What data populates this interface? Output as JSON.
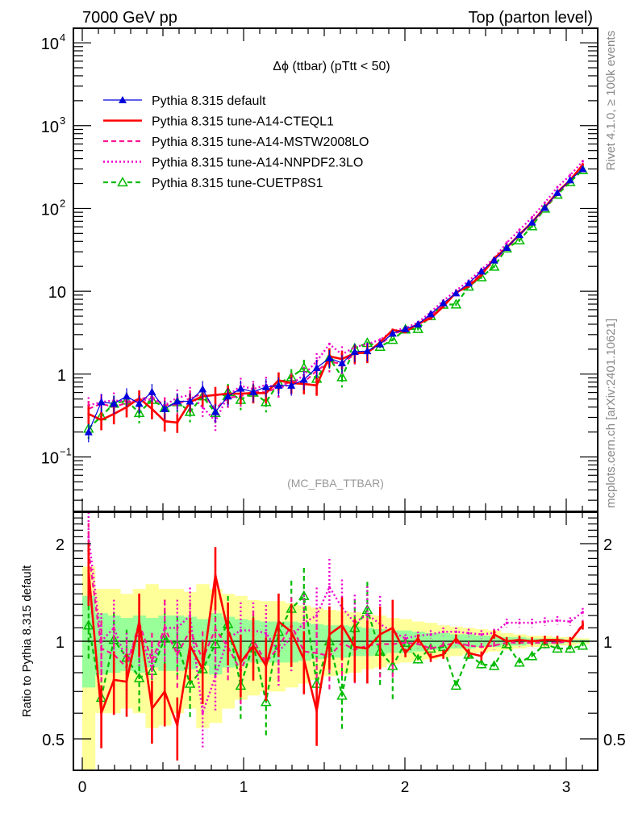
{
  "header": {
    "left_label": "7000 GeV pp",
    "right_label": "Top (parton level)"
  },
  "side_labels": {
    "rivet": "Rivet 4.1.0, ≥ 100k events",
    "mcplots": "mcplots.cern.ch [arXiv:2401.10621]"
  },
  "chart_data": [
    {
      "type": "line",
      "panel": "main",
      "title": "Δϕ (ttbar) (pTtt < 50)",
      "watermark": "(MC_FBA_TTBAR)",
      "xlabel": "",
      "ylabel": "",
      "yscale": "log",
      "xlim": [
        -0.055,
        3.195
      ],
      "ylim": [
        0.022,
        15000
      ],
      "xticks": [
        "0",
        "1",
        "2",
        "3"
      ],
      "yticks": [
        {
          "value": 0.1,
          "label": "10",
          "sup": "−1"
        },
        {
          "value": 1,
          "label": "1",
          "sup": ""
        },
        {
          "value": 10,
          "label": "10",
          "sup": ""
        },
        {
          "value": 100,
          "label": "10",
          "sup": "2"
        },
        {
          "value": 1000,
          "label": "10",
          "sup": "3"
        },
        {
          "value": 10000,
          "label": "10",
          "sup": "4"
        }
      ],
      "legend_position": "top-left",
      "x": [
        0.039,
        0.118,
        0.196,
        0.275,
        0.353,
        0.432,
        0.511,
        0.589,
        0.668,
        0.746,
        0.825,
        0.903,
        0.982,
        1.06,
        1.139,
        1.217,
        1.296,
        1.374,
        1.453,
        1.532,
        1.61,
        1.689,
        1.767,
        1.846,
        1.924,
        2.003,
        2.081,
        2.16,
        2.238,
        2.317,
        2.395,
        2.474,
        2.553,
        2.631,
        2.71,
        2.788,
        2.867,
        2.945,
        3.024,
        3.102
      ],
      "series": [
        {
          "name": "Pythia 8.315 default",
          "color": "#0000dd",
          "style": "solid",
          "marker": "triangle-filled",
          "values": [
            0.2,
            0.46,
            0.44,
            0.54,
            0.44,
            0.61,
            0.38,
            0.47,
            0.47,
            0.66,
            0.35,
            0.54,
            0.67,
            0.61,
            0.7,
            0.73,
            0.73,
            0.86,
            1.19,
            1.56,
            1.36,
            1.86,
            1.9,
            2.3,
            3.1,
            3.5,
            4.0,
            5.3,
            7.2,
            9.5,
            12.5,
            17.4,
            23.7,
            33.7,
            48,
            68,
            102,
            155,
            220,
            300
          ]
        },
        {
          "name": "Pythia 8.315 tune-A14-CTEQL1",
          "color": "#ff0000",
          "style": "solid-thick",
          "marker": "none",
          "values": [
            0.33,
            0.28,
            0.33,
            0.4,
            0.51,
            0.38,
            0.27,
            0.26,
            0.46,
            0.54,
            0.56,
            0.58,
            0.58,
            0.59,
            0.59,
            0.84,
            0.78,
            0.76,
            0.73,
            1.64,
            1.52,
            1.79,
            1.81,
            2.42,
            3.41,
            3.22,
            4.08,
            4.72,
            6.55,
            9.69,
            11.5,
            15.7,
            24.9,
            33.7,
            48.5,
            68.0,
            103,
            157,
            220,
            336
          ]
        },
        {
          "name": "Pythia 8.315 tune-A14-MSTW2008LO",
          "color": "#ff1493",
          "style": "dashed",
          "marker": "none",
          "values": [
            0.38,
            0.44,
            0.4,
            0.45,
            0.5,
            0.53,
            0.42,
            0.43,
            0.51,
            0.58,
            0.38,
            0.52,
            0.54,
            0.62,
            0.6,
            0.7,
            0.82,
            0.8,
            1.1,
            1.4,
            1.34,
            1.74,
            1.84,
            2.25,
            3.05,
            3.45,
            3.9,
            5.05,
            7.0,
            9.45,
            12.1,
            16.7,
            23.0,
            33.4,
            47.5,
            67.5,
            101,
            154,
            219,
            340
          ]
        },
        {
          "name": "Pythia 8.315 tune-A14-NNPDF2.3LO",
          "color": "#ee00cc",
          "style": "dotted",
          "marker": "none",
          "values": [
            0.42,
            0.46,
            0.48,
            0.47,
            0.47,
            0.5,
            0.42,
            0.52,
            0.56,
            0.4,
            0.27,
            0.55,
            0.72,
            0.66,
            0.74,
            0.68,
            0.75,
            0.98,
            1.43,
            2.3,
            1.73,
            2.12,
            2.3,
            2.6,
            3.3,
            3.6,
            4.2,
            5.6,
            7.7,
            10.2,
            13.3,
            18.3,
            25.0,
            38.5,
            55,
            78,
            117,
            180,
            252,
            370
          ]
        },
        {
          "name": "Pythia 8.315 tune-CUETP8S1",
          "color": "#00bb00",
          "style": "dashed",
          "marker": "triangle-open",
          "values": [
            0.22,
            0.31,
            0.44,
            0.48,
            0.34,
            0.49,
            0.39,
            0.46,
            0.35,
            0.54,
            0.34,
            0.61,
            0.49,
            0.6,
            0.46,
            0.78,
            0.92,
            1.19,
            0.88,
            1.56,
            0.92,
            2.05,
            2.38,
            2.14,
            2.6,
            3.47,
            3.52,
            5.04,
            6.91,
            6.94,
            11.4,
            14.8,
            19.9,
            33.0,
            41.3,
            61.2,
            99.9,
            147,
            209,
            291
          ]
        }
      ]
    },
    {
      "type": "line",
      "panel": "ratio",
      "ylabel": "Ratio to Pythia 8.315 default",
      "yscale": "log",
      "xlim": [
        -0.055,
        3.195
      ],
      "ylim": [
        0.4,
        2.5
      ],
      "xticks": [
        "0",
        "1",
        "2",
        "3"
      ],
      "yticks": [
        {
          "value": 0.5,
          "label": "0.5"
        },
        {
          "value": 1,
          "label": "1"
        },
        {
          "value": 2,
          "label": "2"
        }
      ],
      "reference_line": 1,
      "band_colors": {
        "inner": "#99ff99",
        "outer": "#ffff99"
      },
      "band_inner": [
        [
          0.72,
          1.38
        ],
        [
          0.79,
          1.22
        ],
        [
          0.8,
          1.2
        ],
        [
          0.81,
          1.18
        ],
        [
          0.8,
          1.2
        ],
        [
          0.83,
          1.18
        ],
        [
          0.81,
          1.2
        ],
        [
          0.81,
          1.2
        ],
        [
          0.82,
          1.19
        ],
        [
          0.84,
          1.17
        ],
        [
          0.79,
          1.22
        ],
        [
          0.83,
          1.19
        ],
        [
          0.84,
          1.17
        ],
        [
          0.86,
          1.16
        ],
        [
          0.86,
          1.15
        ],
        [
          0.86,
          1.15
        ],
        [
          0.86,
          1.15
        ],
        [
          0.87,
          1.14
        ],
        [
          0.88,
          1.13
        ],
        [
          0.89,
          1.12
        ],
        [
          0.89,
          1.12
        ],
        [
          0.9,
          1.11
        ],
        [
          0.9,
          1.1
        ],
        [
          0.91,
          1.09
        ],
        [
          0.92,
          1.08
        ],
        [
          0.92,
          1.08
        ],
        [
          0.93,
          1.07
        ],
        [
          0.94,
          1.06
        ],
        [
          0.94,
          1.06
        ],
        [
          0.95,
          1.05
        ],
        [
          0.95,
          1.05
        ],
        [
          0.96,
          1.04
        ],
        [
          0.96,
          1.04
        ],
        [
          0.97,
          1.03
        ],
        [
          0.97,
          1.03
        ],
        [
          0.98,
          1.02
        ],
        [
          0.98,
          1.02
        ],
        [
          0.98,
          1.02
        ],
        [
          0.99,
          1.01
        ],
        [
          0.99,
          1.01
        ]
      ],
      "band_outer": [
        [
          0.38,
          1.7
        ],
        [
          0.6,
          1.45
        ],
        [
          0.6,
          1.45
        ],
        [
          0.62,
          1.4
        ],
        [
          0.6,
          1.45
        ],
        [
          0.54,
          1.5
        ],
        [
          0.55,
          1.45
        ],
        [
          0.6,
          1.45
        ],
        [
          0.62,
          1.42
        ],
        [
          0.54,
          1.5
        ],
        [
          0.56,
          1.45
        ],
        [
          0.62,
          1.4
        ],
        [
          0.66,
          1.38
        ],
        [
          0.68,
          1.34
        ],
        [
          0.7,
          1.33
        ],
        [
          0.7,
          1.33
        ],
        [
          0.72,
          1.31
        ],
        [
          0.74,
          1.29
        ],
        [
          0.76,
          1.27
        ],
        [
          0.78,
          1.25
        ],
        [
          0.79,
          1.24
        ],
        [
          0.8,
          1.23
        ],
        [
          0.82,
          1.21
        ],
        [
          0.83,
          1.2
        ],
        [
          0.85,
          1.18
        ],
        [
          0.86,
          1.17
        ],
        [
          0.87,
          1.15
        ],
        [
          0.88,
          1.14
        ],
        [
          0.89,
          1.12
        ],
        [
          0.9,
          1.11
        ],
        [
          0.91,
          1.1
        ],
        [
          0.92,
          1.09
        ],
        [
          0.93,
          1.08
        ],
        [
          0.94,
          1.06
        ],
        [
          0.95,
          1.05
        ],
        [
          0.96,
          1.04
        ],
        [
          0.96,
          1.04
        ],
        [
          0.97,
          1.03
        ],
        [
          0.97,
          1.03
        ],
        [
          0.98,
          1.02
        ]
      ],
      "series": [
        {
          "name": "Pythia 8.315 tune-A14-CTEQL1",
          "color": "#ff0000",
          "values": [
            1.65,
            0.6,
            0.76,
            0.75,
            1.15,
            0.62,
            0.7,
            0.55,
            0.97,
            0.82,
            1.6,
            1.08,
            0.86,
            0.97,
            0.84,
            1.15,
            1.07,
            0.88,
            0.61,
            1.05,
            1.12,
            0.96,
            0.95,
            1.05,
            1.1,
            0.92,
            1.02,
            0.89,
            0.91,
            1.02,
            0.92,
            0.9,
            1.05,
            1.0,
            1.01,
            1.0,
            1.01,
            1.01,
            1.0,
            1.12
          ]
        },
        {
          "name": "Pythia 8.315 tune-A14-MSTW2008LO",
          "color": "#ff1493",
          "values": [
            1.9,
            0.95,
            0.91,
            0.83,
            1.14,
            0.87,
            1.1,
            0.91,
            1.08,
            0.88,
            1.09,
            0.96,
            0.81,
            1.01,
            0.86,
            0.96,
            1.12,
            0.93,
            0.92,
            0.9,
            0.99,
            0.94,
            0.97,
            0.98,
            0.98,
            0.99,
            0.98,
            0.95,
            0.97,
            0.99,
            0.97,
            0.96,
            0.97,
            0.99,
            0.99,
            0.99,
            0.99,
            0.99,
            1.0,
            1.13
          ]
        },
        {
          "name": "Pythia 8.315 tune-A14-NNPDF2.3LO",
          "color": "#ee00cc",
          "values": [
            2.1,
            1.0,
            1.1,
            0.87,
            1.07,
            0.82,
            1.1,
            1.1,
            1.2,
            0.6,
            0.78,
            1.02,
            1.08,
            1.08,
            1.06,
            0.93,
            1.03,
            1.14,
            1.2,
            1.47,
            1.27,
            1.14,
            1.21,
            1.13,
            1.07,
            1.02,
            1.04,
            1.05,
            1.07,
            1.07,
            1.06,
            1.05,
            1.06,
            1.14,
            1.14,
            1.14,
            1.15,
            1.16,
            1.15,
            1.23
          ]
        },
        {
          "name": "Pythia 8.315 tune-CUETP8S1",
          "color": "#00bb00",
          "values": [
            1.12,
            0.67,
            1.01,
            0.89,
            0.77,
            0.81,
            1.02,
            0.98,
            0.74,
            0.82,
            0.98,
            1.13,
            0.73,
            0.98,
            0.65,
            1.07,
            1.26,
            1.38,
            0.74,
            1.0,
            0.68,
            1.1,
            1.25,
            0.93,
            0.84,
            0.99,
            0.88,
            0.95,
            0.96,
            0.73,
            0.91,
            0.85,
            0.84,
            0.98,
            0.86,
            0.9,
            0.98,
            0.95,
            0.95,
            0.97
          ]
        }
      ]
    }
  ]
}
